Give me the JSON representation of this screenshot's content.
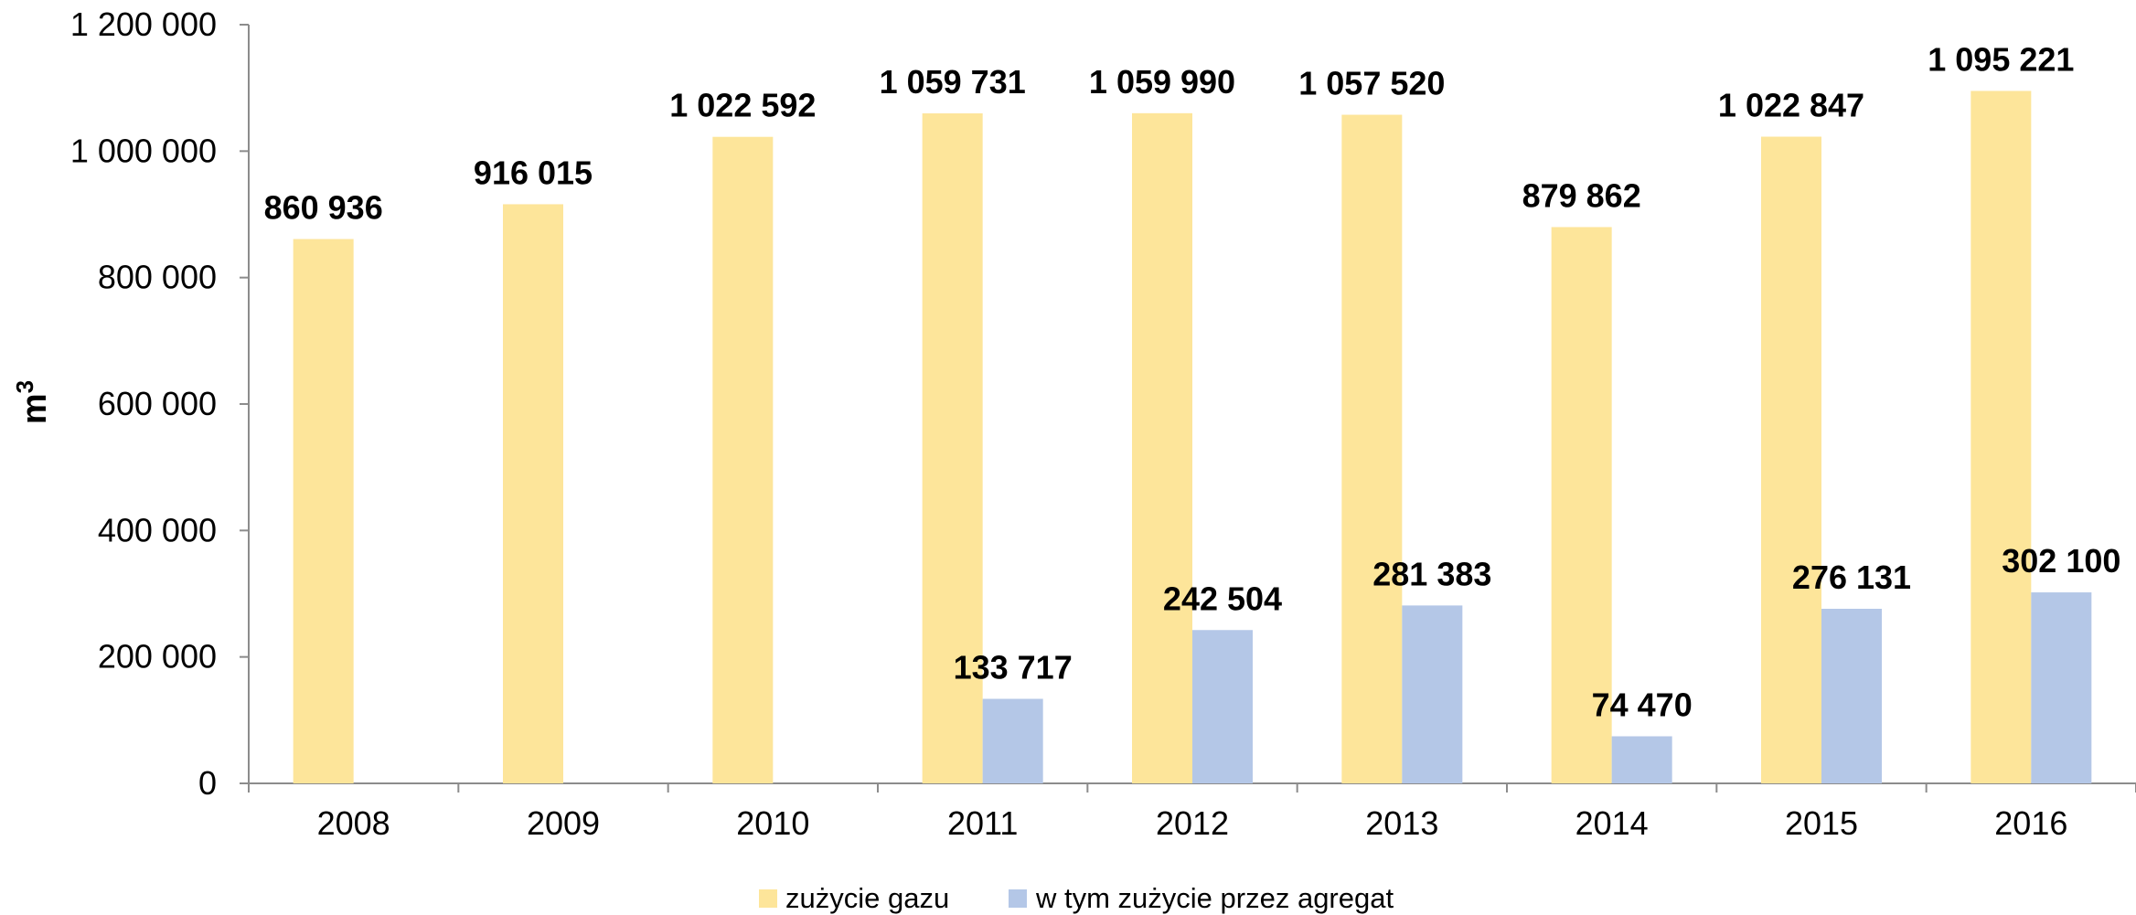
{
  "chart_data": {
    "type": "bar",
    "categories": [
      "2008",
      "2009",
      "2010",
      "2011",
      "2012",
      "2013",
      "2014",
      "2015",
      "2016"
    ],
    "series": [
      {
        "name": "zużycie gazu",
        "color": "#fde59a",
        "values": [
          860936,
          916015,
          1022592,
          1059731,
          1059990,
          1057520,
          879862,
          1022847,
          1095221
        ],
        "labels": [
          "860 936",
          "916 015",
          "1 022 592",
          "1 059 731",
          "1 059 990",
          "1 057 520",
          "879 862",
          "1 022 847",
          "1 095 221"
        ]
      },
      {
        "name": "w tym zużycie przez agregat",
        "color": "#b4c7e7",
        "values": [
          null,
          null,
          null,
          133717,
          242504,
          281383,
          74470,
          276131,
          302100
        ],
        "labels": [
          "",
          "",
          "",
          "133 717",
          "242 504",
          "281 383",
          "74 470",
          "276 131",
          "302 100"
        ]
      }
    ],
    "ylabel": "m",
    "ylabel_superscript": "3",
    "ylim": [
      0,
      1200000
    ],
    "yticks": [
      0,
      200000,
      400000,
      600000,
      800000,
      1000000,
      1200000
    ],
    "ytick_labels": [
      "0",
      "200 000",
      "400 000",
      "600 000",
      "800 000",
      "1 000 000",
      "1 200 000"
    ],
    "grid": false,
    "legend_position": "bottom"
  }
}
